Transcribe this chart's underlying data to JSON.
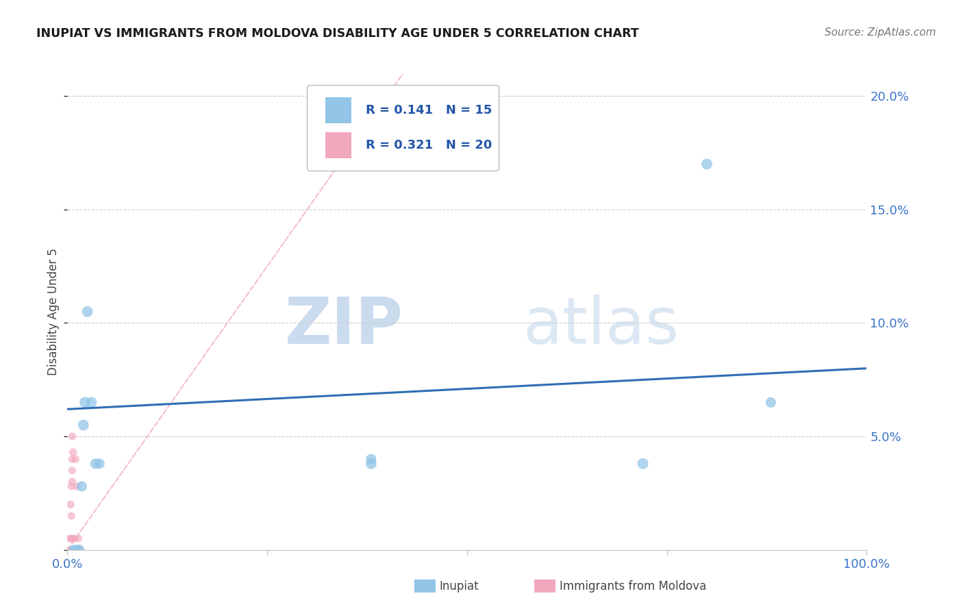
{
  "title": "INUPIAT VS IMMIGRANTS FROM MOLDOVA DISABILITY AGE UNDER 5 CORRELATION CHART",
  "source": "Source: ZipAtlas.com",
  "ylabel": "Disability Age Under 5",
  "xlim": [
    0.0,
    1.0
  ],
  "ylim": [
    0.0,
    0.21
  ],
  "yticks": [
    0.0,
    0.05,
    0.1,
    0.15,
    0.2
  ],
  "xticks": [
    0.0,
    0.25,
    0.5,
    0.75,
    1.0
  ],
  "xtick_labels": [
    "0.0%",
    "",
    "",
    "",
    "100.0%"
  ],
  "ytick_labels_right": [
    "",
    "5.0%",
    "10.0%",
    "15.0%",
    "20.0%"
  ],
  "legend_r1": "R = 0.141",
  "legend_n1": "N = 15",
  "legend_r2": "R = 0.321",
  "legend_n2": "N = 20",
  "inupiat_color": "#92C5E8",
  "moldova_color": "#F2A8BC",
  "trendline_blue_color": "#2E6DB4",
  "trendline_pink_color": "#F2A8BC",
  "watermark_zip": "ZIP",
  "watermark_atlas": "atlas",
  "inupiat_x": [
    0.008,
    0.012,
    0.015,
    0.018,
    0.02,
    0.022,
    0.025,
    0.03,
    0.035,
    0.04,
    0.38,
    0.38,
    0.72,
    0.8,
    0.88
  ],
  "inupiat_y": [
    0.0,
    0.0,
    0.0,
    0.028,
    0.055,
    0.065,
    0.105,
    0.065,
    0.038,
    0.038,
    0.038,
    0.04,
    0.038,
    0.17,
    0.065
  ],
  "moldova_x": [
    0.003,
    0.003,
    0.004,
    0.004,
    0.004,
    0.005,
    0.005,
    0.005,
    0.006,
    0.006,
    0.006,
    0.006,
    0.007,
    0.008,
    0.008,
    0.009,
    0.01,
    0.012,
    0.014,
    0.016
  ],
  "moldova_y": [
    0.0,
    0.005,
    0.0,
    0.005,
    0.02,
    0.005,
    0.015,
    0.028,
    0.03,
    0.035,
    0.04,
    0.05,
    0.043,
    0.0,
    0.005,
    0.005,
    0.04,
    0.028,
    0.005,
    0.0
  ],
  "inupiat_sizes": [
    120,
    120,
    120,
    120,
    130,
    130,
    130,
    130,
    120,
    120,
    130,
    120,
    130,
    130,
    120
  ],
  "moldova_sizes": [
    60,
    60,
    60,
    60,
    70,
    65,
    65,
    65,
    65,
    65,
    65,
    70,
    70,
    60,
    60,
    60,
    70,
    65,
    60,
    60
  ],
  "blue_trend_x0": 0.0,
  "blue_trend_y0": 0.062,
  "blue_trend_x1": 1.0,
  "blue_trend_y1": 0.08,
  "pink_trend_x0": 0.0,
  "pink_trend_y0": 0.0,
  "pink_trend_x1": 0.42,
  "pink_trend_y1": 0.21
}
